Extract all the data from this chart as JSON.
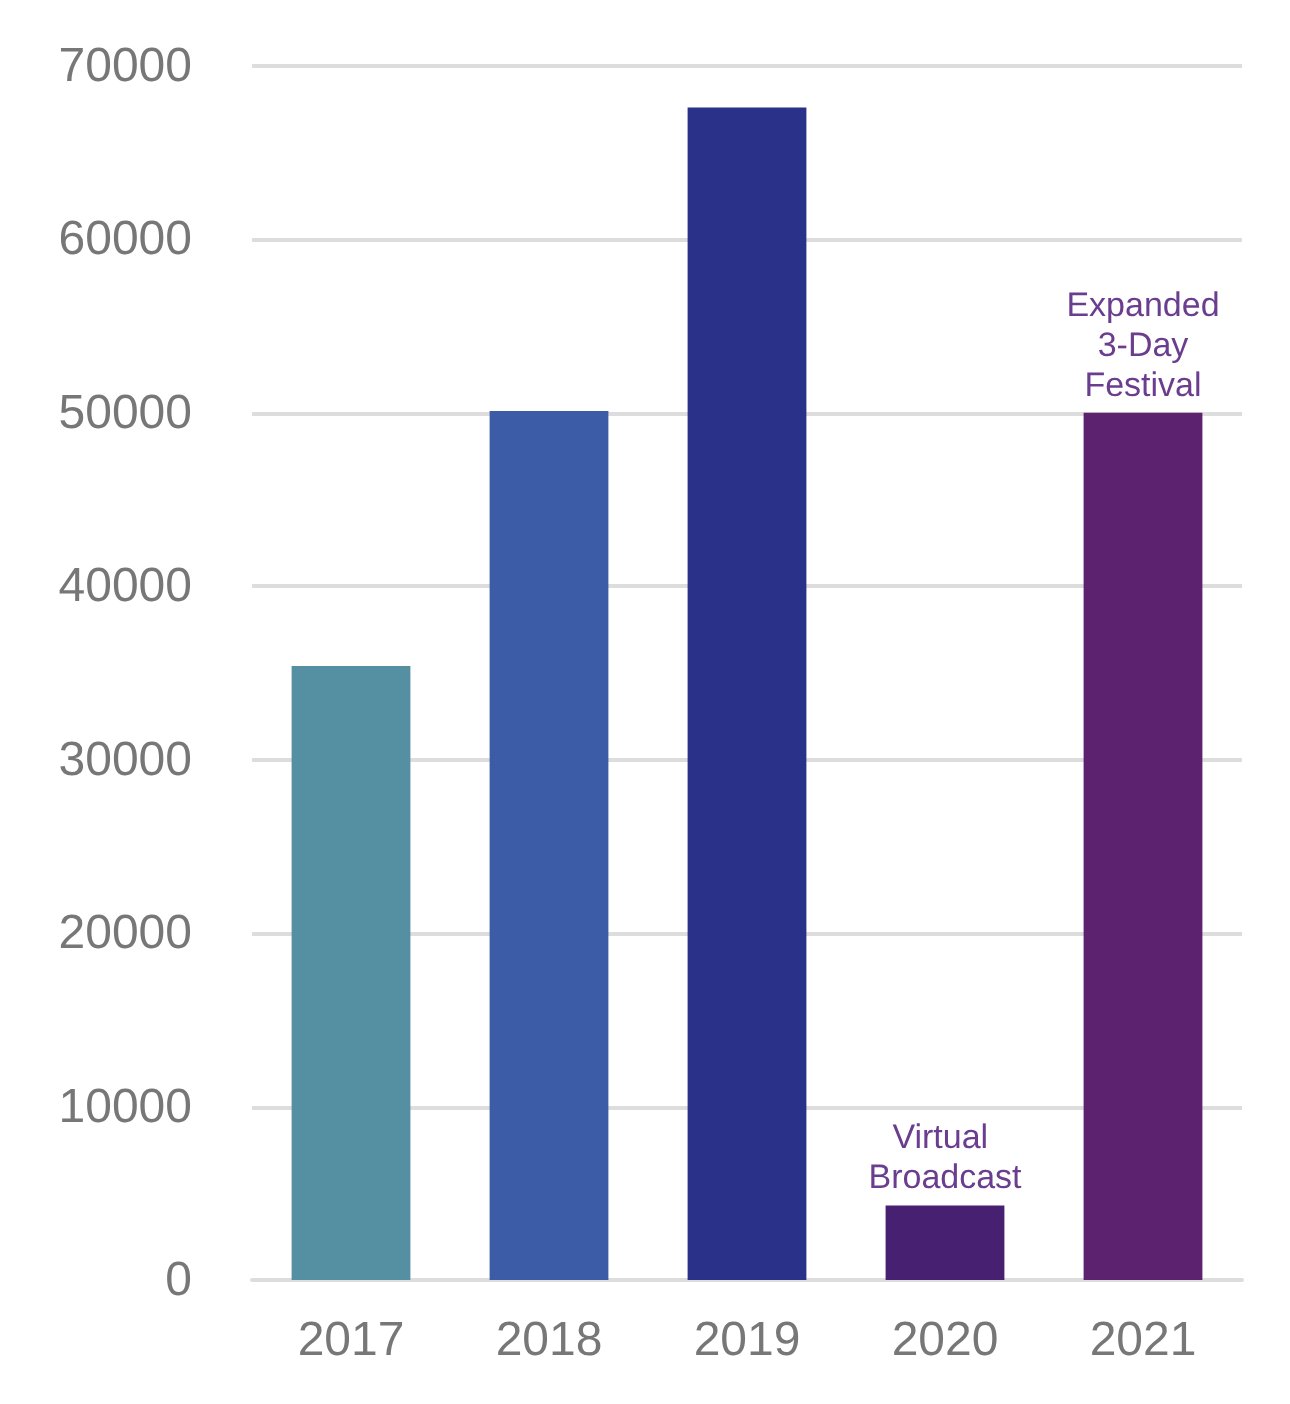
{
  "chart_data": {
    "type": "bar",
    "categories": [
      "2017",
      "2018",
      "2019",
      "2020",
      "2021"
    ],
    "values": [
      35400,
      50100,
      67600,
      4300,
      50000
    ],
    "colors": [
      "#548fa2",
      "#3d5ca7",
      "#2a3189",
      "#472071",
      "#5c2270"
    ],
    "ylim": [
      0,
      70000
    ],
    "yticks": [
      0,
      10000,
      20000,
      30000,
      40000,
      50000,
      60000,
      70000
    ],
    "grid": "y",
    "annotations": [
      {
        "text": "Virtual Broadcast",
        "x": "2020",
        "y": 4300
      },
      {
        "text": "Expanded 3-Day Festival",
        "x": "2021",
        "y": 50000
      }
    ]
  }
}
